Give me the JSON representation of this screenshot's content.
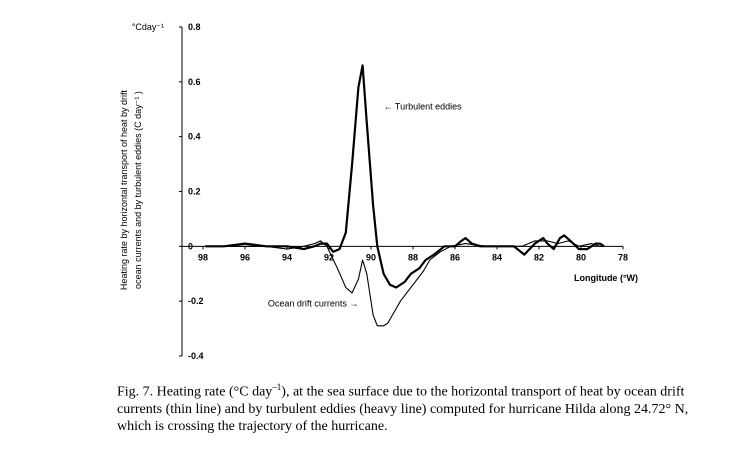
{
  "chart_data": {
    "type": "line",
    "y_unit": "°Cday⁻¹",
    "ylabel_lines": [
      "Heating rate by horizontal transport of heat by drift",
      "ocean currents and by turbulent eddies (C day⁻¹ )"
    ],
    "xlabel": "Longitude (°W)",
    "xlim": [
      99,
      78
    ],
    "xticks": [
      98,
      96,
      94,
      92,
      90,
      88,
      86,
      84,
      82,
      80,
      78
    ],
    "ylim": [
      -0.4,
      0.8
    ],
    "yticks": [
      0.8,
      0.6,
      0.4,
      0.2,
      0,
      -0.2,
      -0.4
    ],
    "series": [
      {
        "color": "#000000",
        "line_width": 2.2,
        "x": [
          97.9,
          97,
          96,
          95,
          94,
          93.2,
          92.7,
          92.4,
          92.1,
          91.8,
          91.5,
          91.2,
          90.9,
          90.6,
          90.4,
          90.2,
          89.9,
          89.7,
          89.4,
          89.1,
          88.8,
          88.4,
          88.1,
          87.7,
          87.4,
          87,
          86.5,
          86,
          85.7,
          85.5,
          85.2,
          84.8,
          84,
          83.2,
          82.7,
          82.2,
          81.8,
          81.6,
          81.3,
          81,
          80.8,
          80.5,
          80.1,
          79.7,
          79.3,
          79.1,
          78.9
        ],
        "values": [
          0,
          0,
          0.01,
          0,
          0,
          -0.01,
          0,
          0.01,
          0.01,
          -0.02,
          -0.01,
          0.05,
          0.3,
          0.58,
          0.66,
          0.45,
          0.15,
          0,
          -0.1,
          -0.14,
          -0.15,
          -0.13,
          -0.1,
          -0.08,
          -0.05,
          -0.03,
          0,
          0,
          0.02,
          0.03,
          0.01,
          0,
          0,
          0,
          -0.03,
          0.01,
          0.03,
          0.01,
          -0.01,
          0.03,
          0.04,
          0.02,
          -0.01,
          -0.01,
          0.01,
          0.01,
          0
        ]
      },
      {
        "color": "#000000",
        "line_width": 1.1,
        "x": [
          97.9,
          97,
          96,
          95,
          94,
          93.2,
          92.7,
          92.4,
          92.1,
          91.6,
          91.2,
          90.9,
          90.6,
          90.4,
          90.2,
          89.9,
          89.7,
          89.4,
          89.2,
          88.9,
          88.6,
          88.2,
          87.9,
          87.5,
          87.2,
          86.7,
          86.2,
          85.5,
          84.5,
          83.5,
          82.8,
          82.2,
          81.6,
          81.1,
          80.6,
          80.1,
          79.5,
          79.1,
          78.9
        ],
        "values": [
          0,
          0,
          0,
          0,
          -0.01,
          0,
          0.01,
          0.02,
          0,
          -0.08,
          -0.15,
          -0.17,
          -0.12,
          -0.05,
          -0.1,
          -0.25,
          -0.29,
          -0.29,
          -0.28,
          -0.24,
          -0.2,
          -0.16,
          -0.13,
          -0.09,
          -0.05,
          -0.02,
          0,
          0.01,
          0,
          0,
          0,
          0.02,
          0.02,
          0.01,
          0.02,
          0,
          0.01,
          0,
          0
        ]
      }
    ],
    "annotations": [
      {
        "text": "← Turbulent eddies",
        "x": 89.4,
        "y": 0.5
      },
      {
        "text": "Ocean drift currents →",
        "x": 90.6,
        "y": -0.22
      }
    ],
    "caption": [
      "Fig. 7. Heating rate (°C day",
      "–1",
      "), at the sea surface due to the horizontal transport of heat by ocean drift currents (thin line) and by turbulent eddies (heavy line) computed for hurricane Hilda along 24.72° N, which is crossing the trajectory of the hurricane."
    ]
  }
}
